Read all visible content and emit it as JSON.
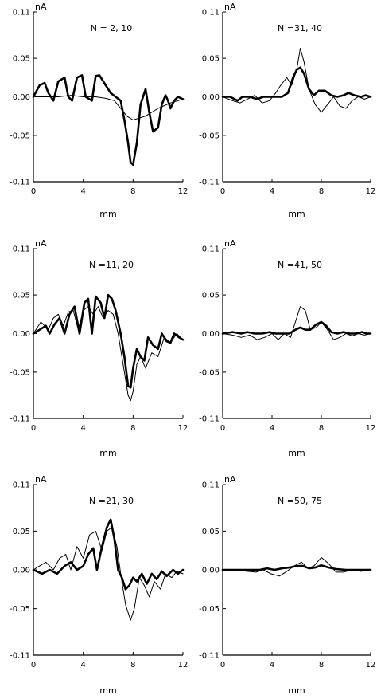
{
  "chart_data": [
    {
      "type": "line",
      "title": "N = 2, 10",
      "xlabel": "mm",
      "ylabel": "nA",
      "xlim": [
        0,
        12
      ],
      "ylim": [
        -0.11,
        0.11
      ],
      "yticks": [
        "0.11",
        "0.05",
        "0.00",
        "-0.05",
        "-0.11"
      ],
      "xticks": [
        "0",
        "4",
        "8",
        "12"
      ],
      "series": [
        {
          "style": "thick",
          "x": [
            0,
            0.5,
            0.9,
            1.2,
            1.6,
            2.0,
            2.5,
            2.8,
            3.1,
            3.5,
            3.9,
            4.2,
            4.7,
            5.0,
            5.3,
            5.8,
            6.2,
            6.6,
            7.0,
            7.3,
            7.6,
            7.8,
            8.0,
            8.3,
            8.6,
            9.0,
            9.3,
            9.6,
            10.0,
            10.3,
            10.6,
            10.8,
            11.0,
            11.3,
            11.6,
            12.0
          ],
          "y": [
            0.0,
            0.015,
            0.018,
            0.005,
            -0.005,
            0.02,
            0.025,
            0.0,
            -0.005,
            0.025,
            0.028,
            0.0,
            -0.005,
            0.027,
            0.028,
            0.015,
            0.005,
            0.0,
            -0.005,
            -0.03,
            -0.06,
            -0.085,
            -0.088,
            -0.06,
            -0.01,
            0.01,
            -0.02,
            -0.045,
            -0.04,
            -0.01,
            0.002,
            -0.005,
            -0.015,
            -0.005,
            0.0,
            -0.003
          ]
        },
        {
          "style": "thin",
          "x": [
            0,
            1,
            2,
            3,
            4,
            5,
            5.8,
            6.5,
            7.0,
            7.5,
            8.0,
            9.0,
            10.0,
            11.0,
            12.0
          ],
          "y": [
            0.0,
            0.0,
            0.0,
            0.002,
            0.0,
            0.0,
            -0.002,
            -0.005,
            -0.015,
            -0.025,
            -0.03,
            -0.025,
            -0.015,
            -0.008,
            -0.003
          ]
        }
      ]
    },
    {
      "type": "line",
      "title": "N =31, 40",
      "xlabel": "mm",
      "ylabel": "nA",
      "xlim": [
        0,
        12
      ],
      "ylim": [
        -0.11,
        0.11
      ],
      "yticks": [
        "0.11",
        "0.05",
        "0.00",
        "-0.05",
        "-0.11"
      ],
      "xticks": [
        "0",
        "4",
        "8",
        "12"
      ],
      "series": [
        {
          "style": "thick",
          "x": [
            0,
            0.6,
            1.2,
            1.6,
            2.2,
            2.8,
            3.3,
            3.8,
            4.3,
            4.8,
            5.3,
            5.7,
            6.0,
            6.3,
            6.6,
            7.0,
            7.4,
            7.8,
            8.3,
            8.8,
            9.3,
            9.8,
            10.2,
            10.7,
            11.2,
            11.6,
            12.0
          ],
          "y": [
            0.0,
            0.0,
            -0.005,
            0.0,
            0.0,
            -0.003,
            0.0,
            0.0,
            0.0,
            0.0,
            0.005,
            0.025,
            0.035,
            0.038,
            0.03,
            0.01,
            0.002,
            0.008,
            0.008,
            0.002,
            0.0,
            0.002,
            0.005,
            0.002,
            0.0,
            0.002,
            0.0
          ]
        },
        {
          "style": "thin",
          "x": [
            0,
            0.8,
            1.4,
            2.0,
            2.6,
            3.2,
            3.8,
            4.3,
            4.7,
            5.2,
            5.6,
            6.0,
            6.3,
            6.6,
            7.0,
            7.5,
            8.0,
            8.5,
            9.0,
            9.5,
            10.0,
            10.5,
            11.0,
            11.5,
            12.0
          ],
          "y": [
            0.0,
            -0.005,
            -0.008,
            -0.003,
            0.002,
            -0.008,
            -0.005,
            0.005,
            0.015,
            0.025,
            0.015,
            0.035,
            0.063,
            0.045,
            0.01,
            -0.01,
            -0.02,
            -0.01,
            0.0,
            -0.012,
            -0.015,
            -0.005,
            0.0,
            -0.003,
            0.0
          ]
        }
      ]
    },
    {
      "type": "line",
      "title": "N =11, 20",
      "xlabel": "mm",
      "ylabel": "nA",
      "xlim": [
        0,
        12
      ],
      "ylim": [
        -0.11,
        0.11
      ],
      "yticks": [
        "0.11",
        "0.05",
        "0.00",
        "-0.05",
        "-0.11"
      ],
      "xticks": [
        "0",
        "4",
        "8",
        "12"
      ],
      "series": [
        {
          "style": "thick",
          "x": [
            0,
            0.5,
            1.0,
            1.3,
            1.7,
            2.1,
            2.5,
            2.9,
            3.3,
            3.7,
            4.1,
            4.4,
            4.7,
            5.0,
            5.4,
            5.7,
            6.0,
            6.3,
            6.6,
            7.0,
            7.3,
            7.6,
            7.8,
            8.0,
            8.3,
            8.6,
            8.9,
            9.2,
            9.6,
            10.0,
            10.3,
            10.7,
            11.0,
            11.3,
            11.7,
            12.0
          ],
          "y": [
            0.0,
            0.005,
            0.01,
            0.0,
            0.012,
            0.02,
            0.0,
            0.025,
            0.035,
            0.0,
            0.04,
            0.045,
            0.0,
            0.048,
            0.04,
            0.02,
            0.05,
            0.045,
            0.03,
            0.0,
            -0.03,
            -0.068,
            -0.07,
            -0.045,
            -0.02,
            -0.03,
            -0.035,
            -0.005,
            -0.015,
            -0.02,
            0.0,
            -0.01,
            -0.012,
            0.0,
            -0.005,
            -0.008
          ]
        },
        {
          "style": "thin",
          "x": [
            0,
            0.6,
            1.2,
            1.6,
            2.0,
            2.4,
            2.8,
            3.2,
            3.6,
            4.0,
            4.4,
            4.8,
            5.2,
            5.6,
            6.0,
            6.4,
            6.8,
            7.2,
            7.6,
            7.8,
            8.0,
            8.3,
            8.6,
            9.0,
            9.5,
            10.0,
            10.5,
            11.0,
            11.5,
            12.0
          ],
          "y": [
            0.0,
            0.015,
            0.005,
            0.02,
            0.025,
            0.01,
            0.028,
            0.03,
            0.005,
            0.03,
            0.035,
            0.025,
            0.035,
            0.02,
            0.03,
            0.025,
            0.0,
            -0.04,
            -0.08,
            -0.087,
            -0.075,
            -0.04,
            -0.03,
            -0.045,
            -0.025,
            -0.03,
            -0.005,
            -0.012,
            0.0,
            -0.008
          ]
        }
      ]
    },
    {
      "type": "line",
      "title": "N =41, 50",
      "xlabel": "mm",
      "ylabel": "nA",
      "xlim": [
        0,
        12
      ],
      "ylim": [
        -0.11,
        0.11
      ],
      "yticks": [
        "0.11",
        "0.05",
        "0.00",
        "-0.05",
        "-0.11"
      ],
      "xticks": [
        "0",
        "4",
        "8",
        "12"
      ],
      "series": [
        {
          "style": "thick",
          "x": [
            0,
            0.8,
            1.5,
            2.0,
            2.6,
            3.2,
            3.8,
            4.3,
            4.8,
            5.4,
            5.9,
            6.3,
            6.7,
            7.1,
            7.6,
            8.0,
            8.4,
            8.8,
            9.3,
            9.8,
            10.3,
            10.8,
            11.3,
            11.7,
            12.0
          ],
          "y": [
            0.0,
            0.002,
            0.0,
            0.002,
            0.0,
            0.0,
            0.002,
            0.0,
            0.0,
            0.0,
            0.005,
            0.008,
            0.005,
            0.005,
            0.012,
            0.015,
            0.01,
            0.002,
            0.0,
            0.002,
            0.0,
            0.0,
            0.002,
            0.0,
            0.0
          ]
        },
        {
          "style": "thin",
          "x": [
            0,
            0.8,
            1.5,
            2.2,
            2.8,
            3.4,
            4.0,
            4.5,
            5.0,
            5.5,
            5.9,
            6.3,
            6.7,
            7.1,
            7.6,
            8.0,
            8.5,
            9.0,
            9.5,
            10.0,
            10.5,
            11.0,
            11.5,
            12.0
          ],
          "y": [
            0.0,
            -0.002,
            -0.005,
            -0.002,
            -0.008,
            -0.005,
            0.0,
            -0.008,
            0.0,
            -0.005,
            0.015,
            0.035,
            0.03,
            0.005,
            0.008,
            0.015,
            0.005,
            -0.008,
            -0.005,
            0.0,
            -0.003,
            0.0,
            -0.002,
            0.0
          ]
        }
      ]
    },
    {
      "type": "line",
      "title": "N =21, 30",
      "xlabel": "mm",
      "ylabel": "nA",
      "xlim": [
        0,
        12
      ],
      "ylim": [
        -0.11,
        0.11
      ],
      "yticks": [
        "0.11",
        "0.05",
        "0.00",
        "-0.05",
        "-0.11"
      ],
      "xticks": [
        "0",
        "4",
        "8",
        "12"
      ],
      "series": [
        {
          "style": "thick",
          "x": [
            0,
            0.7,
            1.3,
            1.9,
            2.5,
            3.0,
            3.5,
            4.0,
            4.4,
            4.8,
            5.1,
            5.5,
            5.9,
            6.2,
            6.5,
            6.8,
            7.1,
            7.4,
            7.7,
            8.0,
            8.3,
            8.7,
            9.1,
            9.5,
            9.9,
            10.3,
            10.7,
            11.2,
            11.6,
            12.0
          ],
          "y": [
            0.0,
            -0.005,
            0.0,
            -0.005,
            0.005,
            0.01,
            0.0,
            0.005,
            0.02,
            0.028,
            0.0,
            0.03,
            0.055,
            0.065,
            0.04,
            0.0,
            -0.01,
            -0.025,
            -0.02,
            -0.01,
            -0.015,
            -0.005,
            -0.018,
            -0.005,
            -0.012,
            -0.002,
            -0.008,
            0.0,
            -0.005,
            0.0
          ]
        },
        {
          "style": "thin",
          "x": [
            0,
            0.5,
            1.0,
            1.6,
            2.1,
            2.6,
            3.0,
            3.5,
            4.0,
            4.5,
            5.0,
            5.5,
            5.9,
            6.3,
            6.7,
            7.0,
            7.4,
            7.8,
            8.1,
            8.5,
            8.9,
            9.3,
            9.7,
            10.2,
            10.6,
            11.1,
            11.5,
            12.0
          ],
          "y": [
            0.0,
            0.005,
            0.01,
            0.0,
            0.015,
            0.02,
            0.0,
            0.03,
            0.015,
            0.045,
            0.05,
            0.025,
            0.05,
            0.055,
            0.03,
            -0.005,
            -0.045,
            -0.065,
            -0.05,
            -0.01,
            -0.02,
            -0.035,
            -0.015,
            -0.025,
            -0.005,
            -0.01,
            -0.002,
            -0.005
          ]
        }
      ]
    },
    {
      "type": "line",
      "title": "N =50, 75",
      "xlabel": "mm",
      "ylabel": "nA",
      "xlim": [
        0,
        12
      ],
      "ylim": [
        -0.11,
        0.11
      ],
      "yticks": [
        "0.11",
        "0.05",
        "0.00",
        "-0.05",
        "-0.11"
      ],
      "xticks": [
        "0",
        "4",
        "8",
        "12"
      ],
      "series": [
        {
          "style": "thick",
          "x": [
            0,
            1,
            2,
            3,
            3.6,
            4.2,
            4.8,
            5.4,
            6.0,
            6.5,
            7.0,
            7.5,
            8.0,
            8.6,
            9.2,
            10.0,
            11.0,
            12.0
          ],
          "y": [
            0.0,
            0.0,
            0.0,
            0.0,
            0.002,
            0.0,
            0.002,
            0.003,
            0.005,
            0.005,
            0.002,
            0.003,
            0.006,
            0.003,
            0.001,
            0.0,
            0.0,
            0.0
          ]
        },
        {
          "style": "thin",
          "x": [
            0,
            1,
            2,
            2.7,
            3.3,
            3.9,
            4.6,
            5.2,
            5.8,
            6.4,
            6.9,
            7.4,
            8.0,
            8.6,
            9.2,
            9.8,
            10.5,
            11.2,
            12.0
          ],
          "y": [
            0.0,
            0.0,
            -0.002,
            -0.003,
            0.0,
            -0.005,
            -0.008,
            -0.002,
            0.005,
            0.01,
            0.002,
            0.005,
            0.016,
            0.008,
            -0.003,
            -0.003,
            0.0,
            -0.002,
            0.0
          ]
        }
      ]
    }
  ]
}
